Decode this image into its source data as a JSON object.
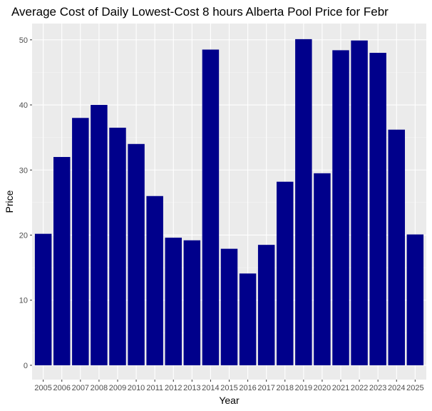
{
  "chart_data": {
    "type": "bar",
    "title": "Average Cost of Daily Lowest-Cost 8 hours Alberta Pool Price for Febr",
    "xlabel": "Year",
    "ylabel": "Price",
    "categories": [
      "2005",
      "2006",
      "2007",
      "2008",
      "2009",
      "2010",
      "2011",
      "2012",
      "2013",
      "2014",
      "2015",
      "2016",
      "2017",
      "2018",
      "2019",
      "2020",
      "2021",
      "2022",
      "2023",
      "2024",
      "2025"
    ],
    "values": [
      20.2,
      32.0,
      38.0,
      40.0,
      36.5,
      34.0,
      26.0,
      19.6,
      19.2,
      48.5,
      17.9,
      14.1,
      18.5,
      28.2,
      50.1,
      29.5,
      48.4,
      49.9,
      48.0,
      36.2,
      20.1
    ],
    "ylim": [
      -2.2,
      52.5
    ],
    "yticks": [
      0,
      10,
      20,
      30,
      40,
      50
    ],
    "bar_color": "#00008B",
    "panel_color": "#EBEBEB",
    "grid": true
  }
}
